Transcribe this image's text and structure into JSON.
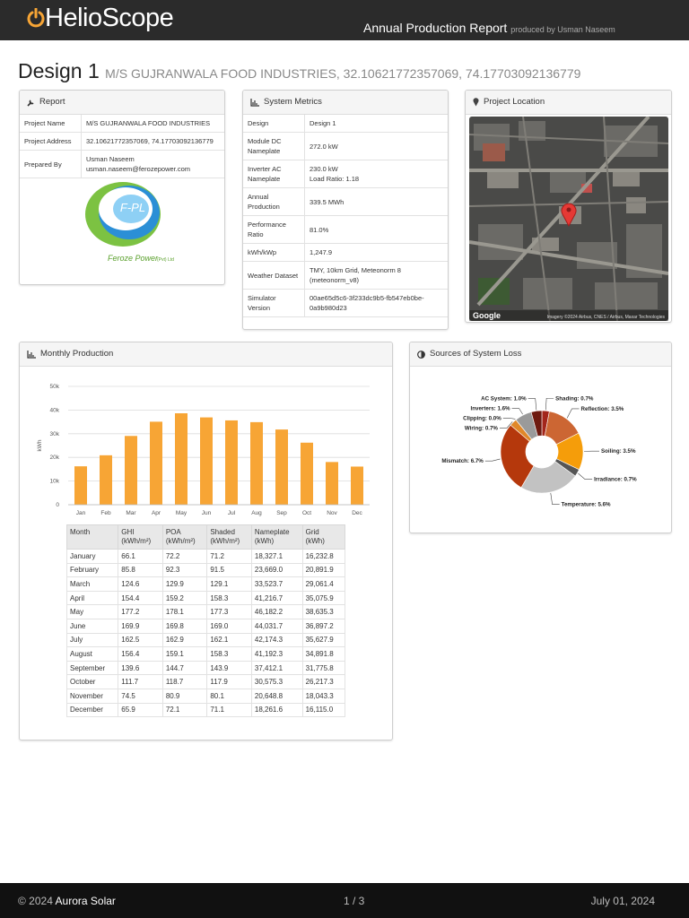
{
  "header": {
    "brand": "HelioScope",
    "report_title": "Annual Production Report",
    "produced_by": "produced by Usman Naseem"
  },
  "design": {
    "name": "Design 1",
    "subtitle": "M/S GUJRANWALA FOOD INDUSTRIES, 32.10621772357069, 74.17703092136779"
  },
  "report": {
    "title": "Report",
    "rows": [
      {
        "label": "Project Name",
        "lines": [
          "M/S GUJRANWALA FOOD INDUSTRIES"
        ]
      },
      {
        "label": "Project Address",
        "lines": [
          "32.10621772357069, 74.17703092136779"
        ]
      },
      {
        "label": "Prepared By",
        "lines": [
          "Usman Naseem",
          "usman.naseem@ferozepower.com"
        ]
      }
    ],
    "logo": {
      "mark": "F-PL",
      "caption": "Feroze Power",
      "suffix": "(Pvt) Ltd"
    }
  },
  "metrics": {
    "title": "System Metrics",
    "rows": [
      {
        "label": "Design",
        "lines": [
          "Design 1"
        ]
      },
      {
        "label": "Module DC Nameplate",
        "lines": [
          "272.0 kW"
        ]
      },
      {
        "label": "Inverter AC Nameplate",
        "lines": [
          "230.0 kW",
          "Load Ratio: 1.18"
        ]
      },
      {
        "label": "Annual Production",
        "lines": [
          "339.5 MWh"
        ]
      },
      {
        "label": "Performance Ratio",
        "lines": [
          "81.0%"
        ]
      },
      {
        "label": "kWh/kWp",
        "lines": [
          "1,247.9"
        ]
      },
      {
        "label": "Weather Dataset",
        "lines": [
          "TMY, 10km Grid, Meteonorm 8 (meteonorm_v8)"
        ]
      },
      {
        "label": "Simulator Version",
        "lines": [
          "00ae65d5c6-3f233dc9b5-fb547eb0be-0a9b980d23"
        ]
      }
    ]
  },
  "location": {
    "title": "Project Location",
    "attribution": "Google",
    "imagery": "Imagery ©2024 Airbus, CNES / Airbus, Maxar Technologies"
  },
  "monthly": {
    "title": "Monthly Production",
    "chart_data": {
      "type": "bar",
      "ylabel": "kWh",
      "categories": [
        "Jan",
        "Feb",
        "Mar",
        "Apr",
        "May",
        "Jun",
        "Jul",
        "Aug",
        "Sep",
        "Oct",
        "Nov",
        "Dec"
      ],
      "values": [
        16232.8,
        20891.9,
        29061.4,
        35075.9,
        38635.3,
        36897.2,
        35627.9,
        34891.8,
        31775.8,
        26217.3,
        18043.3,
        16115.0
      ],
      "color": "#f7a535",
      "ylim": [
        0,
        50000
      ],
      "yticks": [
        0,
        {
          "value": 10000,
          "label": "10k"
        },
        {
          "value": 20000,
          "label": "20k"
        },
        {
          "value": 30000,
          "label": "30k"
        },
        {
          "value": 40000,
          "label": "40k"
        },
        {
          "value": 50000,
          "label": "50k"
        }
      ],
      "grid": true
    },
    "table": {
      "headers": [
        [
          "Month"
        ],
        [
          "GHI",
          "(kWh/m²)"
        ],
        [
          "POA",
          "(kWh/m²)"
        ],
        [
          "Shaded",
          "(kWh/m²)"
        ],
        [
          "Nameplate",
          "(kWh)"
        ],
        [
          "Grid",
          "(kWh)"
        ]
      ],
      "rows": [
        [
          "January",
          "66.1",
          "72.2",
          "71.2",
          "18,327.1",
          "16,232.8"
        ],
        [
          "February",
          "85.8",
          "92.3",
          "91.5",
          "23,669.0",
          "20,891.9"
        ],
        [
          "March",
          "124.6",
          "129.9",
          "129.1",
          "33,523.7",
          "29,061.4"
        ],
        [
          "April",
          "154.4",
          "159.2",
          "158.3",
          "41,216.7",
          "35,075.9"
        ],
        [
          "May",
          "177.2",
          "178.1",
          "177.3",
          "46,182.2",
          "38,635.3"
        ],
        [
          "June",
          "169.9",
          "169.8",
          "169.0",
          "44,031.7",
          "36,897.2"
        ],
        [
          "July",
          "162.5",
          "162.9",
          "162.1",
          "42,174.3",
          "35,627.9"
        ],
        [
          "August",
          "156.4",
          "159.1",
          "158.3",
          "41,192.3",
          "34,891.8"
        ],
        [
          "September",
          "139.6",
          "144.7",
          "143.9",
          "37,412.1",
          "31,775.8"
        ],
        [
          "October",
          "111.7",
          "118.7",
          "117.9",
          "30,575.3",
          "26,217.3"
        ],
        [
          "November",
          "74.5",
          "80.9",
          "80.1",
          "20,648.8",
          "18,043.3"
        ],
        [
          "December",
          "65.9",
          "72.1",
          "71.1",
          "18,261.6",
          "16,115.0"
        ]
      ]
    }
  },
  "loss": {
    "title": "Sources of System Loss",
    "chart_data": {
      "type": "pie",
      "donut": true,
      "values": [
        0.7,
        3.5,
        3.5,
        0.7,
        5.6,
        6.7,
        0.7,
        0.0,
        1.6,
        1.0
      ],
      "value_labels": [
        "Shading: 0.7%",
        "Reflection: 3.5%",
        "Soiling: 3.5%",
        "Irradiance: 0.7%",
        "Temperature: 5.6%",
        "Mismatch: 6.7%",
        "Wiring: 0.7%",
        "Clipping: 0.0%",
        "Inverters: 1.6%",
        "AC System: 1.0%"
      ],
      "colors": [
        "#a3261b",
        "#cc6633",
        "#f59d0a",
        "#555555",
        "#c2c2c2",
        "#b5380c",
        "#e0882a",
        "#f2b655",
        "#9a9a9a",
        "#6e1a10"
      ]
    }
  },
  "footer": {
    "copyright": "© 2024",
    "company": "Aurora Solar",
    "page": "1 / 3",
    "date": "July 01, 2024"
  }
}
